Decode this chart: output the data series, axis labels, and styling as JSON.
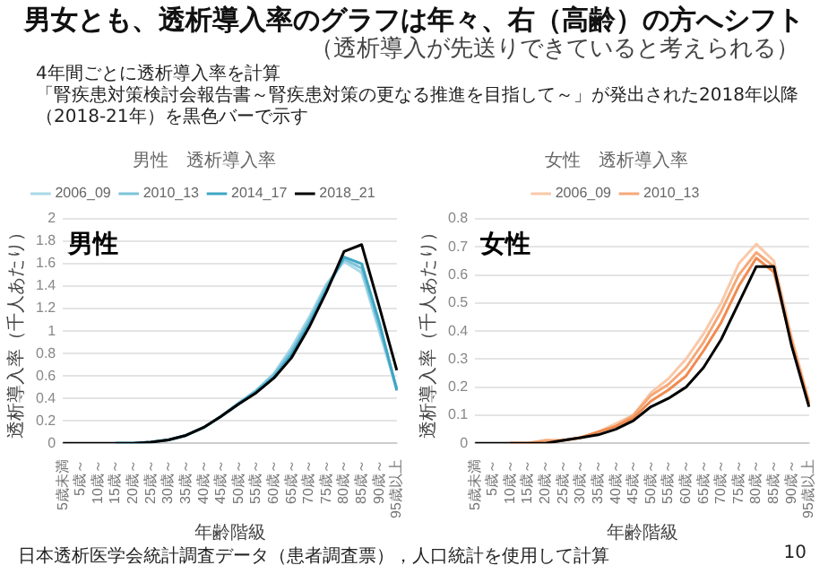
{
  "chart_data": [
    {
      "type": "line",
      "title": "男性　透析導入率",
      "xlabel": "年齢階級",
      "ylabel": "透析導入率（千人あたり）",
      "categories": [
        "5歳未満",
        "5歳～",
        "10歳～",
        "15歳～",
        "20歳～",
        "25歳～",
        "30歳～",
        "35歳～",
        "40歳～",
        "45歳～",
        "50歳～",
        "55歳～",
        "60歳～",
        "65歳～",
        "70歳～",
        "75歳～",
        "80歳～",
        "85歳～",
        "90歳～",
        "95歳以上"
      ],
      "series": [
        {
          "name": "2006_09",
          "color": "#a9d8e8",
          "values": [
            null,
            null,
            null,
            0,
            0,
            0.01,
            0.03,
            0.07,
            0.14,
            0.24,
            0.36,
            0.47,
            0.62,
            0.85,
            1.12,
            1.42,
            1.62,
            1.52,
            1.0,
            0.48
          ]
        },
        {
          "name": "2010_13",
          "color": "#7cc4da",
          "values": [
            null,
            null,
            null,
            0,
            0,
            0.01,
            0.03,
            0.07,
            0.14,
            0.24,
            0.36,
            0.47,
            0.61,
            0.82,
            1.09,
            1.4,
            1.64,
            1.56,
            1.04,
            0.49
          ]
        },
        {
          "name": "2014_17",
          "color": "#3fa6c4",
          "values": [
            null,
            null,
            null,
            0,
            0,
            0.01,
            0.03,
            0.07,
            0.14,
            0.24,
            0.35,
            0.46,
            0.59,
            0.79,
            1.06,
            1.37,
            1.66,
            1.6,
            1.08,
            0.47
          ]
        },
        {
          "name": "2018_21",
          "color": "#000000",
          "values": [
            0,
            0,
            0,
            0,
            0,
            0.01,
            0.03,
            0.07,
            0.14,
            0.24,
            0.35,
            0.45,
            0.58,
            0.76,
            1.03,
            1.35,
            1.71,
            1.77,
            1.22,
            0.65
          ]
        }
      ],
      "ylim": [
        0,
        2
      ],
      "yticks": [
        0,
        0.2,
        0.4,
        0.6,
        0.8,
        1,
        1.2,
        1.4,
        1.6,
        1.8,
        2
      ],
      "grid": "y",
      "legend": "top",
      "marker": "none",
      "annotations": [
        "男性",
        "男女とも、透析導入率のグラフは年々、右（高齢）の方へシフト",
        "（透析導入が先送りできていると考えられる）",
        "4年間ごとに透析導入率を計算",
        "「腎疾患対策検討会報告書～腎疾患対策の更なる推進を目指して～」が発出された2018年以降（2018-21年）を黒色バーで示す",
        "日本透析医学会統計調査データ（患者調査票），人口統計を使用して計算",
        "10"
      ]
    },
    {
      "type": "line",
      "title": "女性　透析導入率",
      "xlabel": "年齢階級",
      "ylabel": "透析導入率（千人あたり）",
      "categories": [
        "5歳未満",
        "5歳～",
        "10歳～",
        "15歳～",
        "20歳～",
        "25歳～",
        "30歳～",
        "35歳～",
        "40歳～",
        "45歳～",
        "50歳～",
        "55歳～",
        "60歳～",
        "65歳～",
        "70歳～",
        "75歳～",
        "80歳～",
        "85歳～",
        "90歳～",
        "95歳以上"
      ],
      "series": [
        {
          "name": "2006_09",
          "color": "#f9c9a9",
          "values": [
            null,
            null,
            0,
            0,
            0.01,
            0.01,
            0.02,
            0.04,
            0.07,
            0.1,
            0.18,
            0.23,
            0.3,
            0.39,
            0.5,
            0.64,
            0.71,
            0.65,
            0.38,
            0.15
          ]
        },
        {
          "name": "2010_13",
          "color": "#f5a878",
          "values": [
            null,
            null,
            0,
            0,
            0.01,
            0.01,
            0.02,
            0.04,
            0.06,
            0.1,
            0.17,
            0.21,
            0.27,
            0.36,
            0.47,
            0.6,
            0.68,
            0.63,
            0.37,
            0.14
          ]
        },
        {
          "color": "#f08a50",
          "values": [
            null,
            null,
            0,
            0,
            0,
            0.01,
            0.02,
            0.04,
            0.06,
            0.09,
            0.15,
            0.19,
            0.24,
            0.33,
            0.43,
            0.56,
            0.66,
            0.61,
            0.36,
            0.14
          ]
        },
        {
          "color": "#000000",
          "values": [
            0,
            0,
            0,
            0,
            0,
            0.01,
            0.02,
            0.03,
            0.05,
            0.08,
            0.13,
            0.16,
            0.2,
            0.27,
            0.37,
            0.5,
            0.63,
            0.63,
            0.35,
            0.13
          ]
        }
      ],
      "ylim": [
        0,
        0.8
      ],
      "yticks": [
        0,
        0.1,
        0.2,
        0.3,
        0.4,
        0.5,
        0.6,
        0.7,
        0.8
      ],
      "grid": "y",
      "legend": "top",
      "marker": "none",
      "annotations": [
        "女性"
      ]
    }
  ]
}
